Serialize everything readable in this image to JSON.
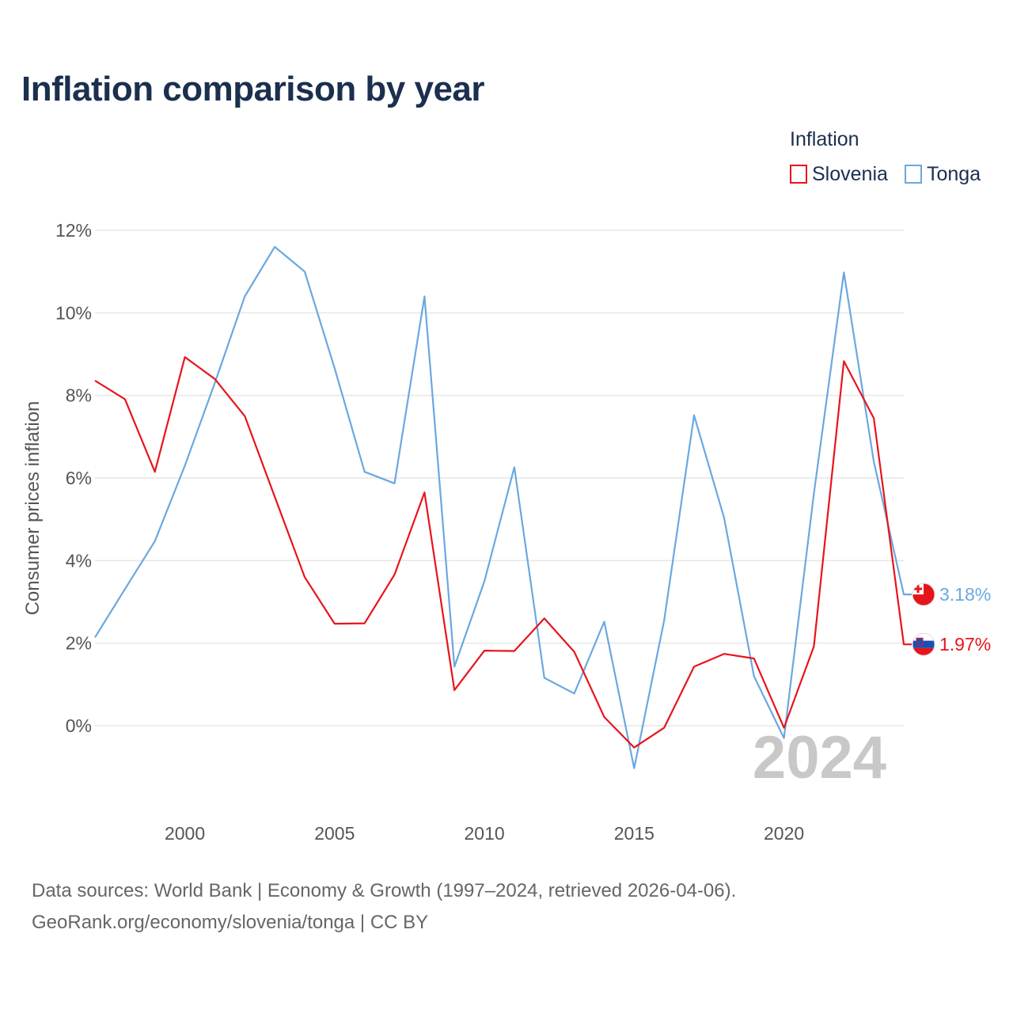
{
  "title": "Inflation comparison by year",
  "legend": {
    "title": "Inflation",
    "items": [
      {
        "label": "Slovenia",
        "color": "#e8141c"
      },
      {
        "label": "Tonga",
        "color": "#6aa8e0"
      }
    ]
  },
  "chart_data": {
    "type": "line",
    "title": "Inflation comparison by year",
    "xlabel": "",
    "ylabel": "Consumer prices inflation",
    "x": [
      1997,
      1998,
      1999,
      2000,
      2001,
      2002,
      2003,
      2004,
      2005,
      2006,
      2007,
      2008,
      2009,
      2010,
      2011,
      2012,
      2013,
      2014,
      2015,
      2016,
      2017,
      2018,
      2019,
      2020,
      2021,
      2022,
      2023,
      2024
    ],
    "xlim": [
      1997,
      2024
    ],
    "xticks": [
      2000,
      2005,
      2010,
      2015,
      2020
    ],
    "xtick_labels": [
      "2000",
      "2005",
      "2010",
      "2015",
      "2020"
    ],
    "ylim": [
      -2,
      12
    ],
    "yticks": [
      0,
      2,
      4,
      6,
      8,
      10,
      12
    ],
    "ytick_labels": [
      "0%",
      "2%",
      "4%",
      "6%",
      "8%",
      "10%",
      "12%"
    ],
    "grid": true,
    "legend_position": "top-right",
    "watermark": "2024",
    "series": [
      {
        "name": "Slovenia",
        "color": "#e8141c",
        "values": [
          8.36,
          7.91,
          6.15,
          8.93,
          8.4,
          7.5,
          5.55,
          3.6,
          2.47,
          2.48,
          3.66,
          5.65,
          0.86,
          1.82,
          1.81,
          2.6,
          1.79,
          0.21,
          -0.53,
          -0.05,
          1.43,
          1.74,
          1.63,
          -0.05,
          1.92,
          8.83,
          7.45,
          1.97
        ],
        "end_label": "1.97%"
      },
      {
        "name": "Tonga",
        "color": "#6aa8e0",
        "values": [
          2.14,
          3.31,
          4.47,
          6.3,
          8.3,
          10.4,
          11.6,
          11.0,
          8.66,
          6.15,
          5.87,
          10.4,
          1.43,
          3.5,
          6.26,
          1.16,
          0.78,
          2.52,
          -1.03,
          2.55,
          7.52,
          5.04,
          1.2,
          -0.3,
          5.62,
          10.98,
          6.4,
          3.18
        ],
        "end_label": "3.18%"
      }
    ]
  },
  "source": {
    "line1": "Data sources: World Bank | Economy & Growth (1997–2024, retrieved 2026-04-06).",
    "line2": "GeoRank.org/economy/slovenia/tonga | CC BY"
  }
}
